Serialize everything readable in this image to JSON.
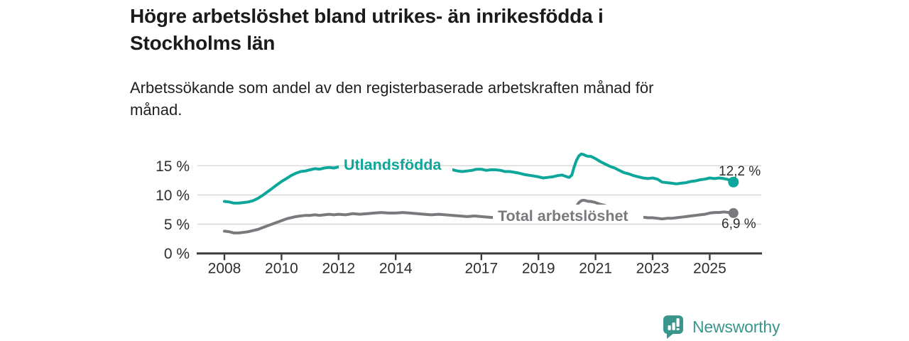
{
  "title": "Högre arbetslöshet bland utrikes- än inrikesfödda i\nStockholms län",
  "subtitle": "Arbetssökande som andel av den registerbaserade arbetskraften månad för\nmånad.",
  "branding": {
    "logo_text": "Newsworthy",
    "logo_icon": "bar-chart-speech-bubble-icon",
    "logo_color": "#3A958D"
  },
  "colors": {
    "series_utlandsfodda": "#0CA69A",
    "series_total": "#7A7A7E",
    "gridline": "#DADADA",
    "axis": "#3C3C3C",
    "tick_text": "#2E2E2E",
    "value_text": "#2D2D2D",
    "background": "#FFFFFF"
  },
  "chart_data": {
    "type": "line",
    "title": "Högre arbetslöshet bland utrikes- än inrikesfödda i Stockholms län",
    "subtitle": "Arbetssökande som andel av den registerbaserade arbetskraften månad för månad.",
    "xlabel": "",
    "ylabel": "",
    "grid": "horizontal",
    "legend_position": "inline-labels",
    "xlim": [
      2007.05,
      2026.8
    ],
    "ylim": [
      0,
      18.2
    ],
    "x_tick_years": [
      2008,
      2010,
      2012,
      2014,
      2017,
      2019,
      2021,
      2023,
      2025
    ],
    "x_tick_labels": [
      "2008",
      "2010",
      "2012",
      "2014",
      "2017",
      "2019",
      "2021",
      "2023",
      "2025"
    ],
    "y_tick_values": [
      0,
      5,
      10,
      15
    ],
    "y_tick_labels": [
      "0 %",
      "5 %",
      "10 %",
      "15 %"
    ],
    "series": [
      {
        "name": "Utlandsfödda",
        "color": "#0CA69A",
        "end_label": "12,2 %",
        "last_value": 12.2,
        "points": [
          [
            2008.0,
            8.9
          ],
          [
            2008.17,
            8.8
          ],
          [
            2008.33,
            8.6
          ],
          [
            2008.5,
            8.6
          ],
          [
            2008.67,
            8.7
          ],
          [
            2008.83,
            8.8
          ],
          [
            2009.0,
            9.0
          ],
          [
            2009.17,
            9.4
          ],
          [
            2009.33,
            9.9
          ],
          [
            2009.5,
            10.5
          ],
          [
            2009.67,
            11.1
          ],
          [
            2009.83,
            11.7
          ],
          [
            2010.0,
            12.3
          ],
          [
            2010.17,
            12.8
          ],
          [
            2010.33,
            13.3
          ],
          [
            2010.5,
            13.7
          ],
          [
            2010.67,
            14.0
          ],
          [
            2010.83,
            14.1
          ],
          [
            2011.0,
            14.3
          ],
          [
            2011.17,
            14.5
          ],
          [
            2011.33,
            14.4
          ],
          [
            2011.5,
            14.6
          ],
          [
            2011.67,
            14.7
          ],
          [
            2011.83,
            14.6
          ],
          [
            2012.0,
            14.8
          ],
          [
            2012.17,
            14.9
          ],
          [
            2012.33,
            15.0
          ],
          [
            2012.5,
            14.9
          ],
          [
            2012.75,
            15.1
          ],
          [
            2013.0,
            15.0
          ],
          [
            2013.25,
            15.2
          ],
          [
            2013.5,
            15.3
          ],
          [
            2013.75,
            15.1
          ],
          [
            2014.0,
            15.2
          ],
          [
            2014.25,
            15.0
          ],
          [
            2014.5,
            14.9
          ],
          [
            2014.75,
            14.8
          ],
          [
            2015.0,
            14.7
          ],
          [
            2015.25,
            14.6
          ],
          [
            2015.5,
            14.5
          ],
          [
            2015.75,
            14.4
          ],
          [
            2016.0,
            14.3
          ],
          [
            2016.17,
            14.1
          ],
          [
            2016.33,
            14.0
          ],
          [
            2016.5,
            14.1
          ],
          [
            2016.67,
            14.2
          ],
          [
            2016.83,
            14.4
          ],
          [
            2017.0,
            14.4
          ],
          [
            2017.17,
            14.2
          ],
          [
            2017.33,
            14.3
          ],
          [
            2017.5,
            14.3
          ],
          [
            2017.67,
            14.2
          ],
          [
            2017.83,
            14.0
          ],
          [
            2018.0,
            14.0
          ],
          [
            2018.25,
            13.8
          ],
          [
            2018.5,
            13.5
          ],
          [
            2018.75,
            13.3
          ],
          [
            2019.0,
            13.1
          ],
          [
            2019.17,
            12.9
          ],
          [
            2019.33,
            13.0
          ],
          [
            2019.5,
            13.1
          ],
          [
            2019.67,
            13.3
          ],
          [
            2019.83,
            13.4
          ],
          [
            2020.0,
            13.1
          ],
          [
            2020.08,
            13.0
          ],
          [
            2020.17,
            13.4
          ],
          [
            2020.25,
            14.8
          ],
          [
            2020.33,
            15.9
          ],
          [
            2020.42,
            16.7
          ],
          [
            2020.5,
            17.0
          ],
          [
            2020.58,
            16.9
          ],
          [
            2020.67,
            16.7
          ],
          [
            2020.75,
            16.6
          ],
          [
            2020.83,
            16.6
          ],
          [
            2020.92,
            16.4
          ],
          [
            2021.0,
            16.2
          ],
          [
            2021.17,
            15.7
          ],
          [
            2021.33,
            15.3
          ],
          [
            2021.5,
            14.9
          ],
          [
            2021.67,
            14.6
          ],
          [
            2021.83,
            14.2
          ],
          [
            2022.0,
            13.8
          ],
          [
            2022.17,
            13.6
          ],
          [
            2022.33,
            13.3
          ],
          [
            2022.5,
            13.1
          ],
          [
            2022.67,
            12.9
          ],
          [
            2022.83,
            12.8
          ],
          [
            2023.0,
            12.9
          ],
          [
            2023.17,
            12.7
          ],
          [
            2023.33,
            12.2
          ],
          [
            2023.5,
            12.1
          ],
          [
            2023.67,
            12.0
          ],
          [
            2023.83,
            11.9
          ],
          [
            2024.0,
            12.0
          ],
          [
            2024.17,
            12.1
          ],
          [
            2024.33,
            12.3
          ],
          [
            2024.5,
            12.4
          ],
          [
            2024.67,
            12.6
          ],
          [
            2024.83,
            12.7
          ],
          [
            2025.0,
            12.9
          ],
          [
            2025.17,
            12.8
          ],
          [
            2025.33,
            12.9
          ],
          [
            2025.5,
            12.8
          ],
          [
            2025.67,
            12.6
          ],
          [
            2025.83,
            12.2
          ]
        ]
      },
      {
        "name": "Total arbetslöshet",
        "color": "#7A7A7E",
        "end_label": "6,9 %",
        "last_value": 6.9,
        "points": [
          [
            2008.0,
            3.8
          ],
          [
            2008.17,
            3.7
          ],
          [
            2008.33,
            3.5
          ],
          [
            2008.5,
            3.5
          ],
          [
            2008.67,
            3.6
          ],
          [
            2008.83,
            3.7
          ],
          [
            2009.0,
            3.9
          ],
          [
            2009.17,
            4.1
          ],
          [
            2009.33,
            4.4
          ],
          [
            2009.5,
            4.7
          ],
          [
            2009.67,
            5.0
          ],
          [
            2009.83,
            5.3
          ],
          [
            2010.0,
            5.6
          ],
          [
            2010.17,
            5.9
          ],
          [
            2010.33,
            6.1
          ],
          [
            2010.5,
            6.3
          ],
          [
            2010.67,
            6.4
          ],
          [
            2010.83,
            6.5
          ],
          [
            2011.0,
            6.5
          ],
          [
            2011.17,
            6.6
          ],
          [
            2011.33,
            6.5
          ],
          [
            2011.5,
            6.6
          ],
          [
            2011.67,
            6.7
          ],
          [
            2011.83,
            6.6
          ],
          [
            2012.0,
            6.7
          ],
          [
            2012.25,
            6.6
          ],
          [
            2012.5,
            6.8
          ],
          [
            2012.75,
            6.7
          ],
          [
            2013.0,
            6.8
          ],
          [
            2013.25,
            6.9
          ],
          [
            2013.5,
            7.0
          ],
          [
            2013.75,
            6.9
          ],
          [
            2014.0,
            6.9
          ],
          [
            2014.25,
            7.0
          ],
          [
            2014.5,
            6.9
          ],
          [
            2014.75,
            6.8
          ],
          [
            2015.0,
            6.7
          ],
          [
            2015.25,
            6.6
          ],
          [
            2015.5,
            6.7
          ],
          [
            2015.75,
            6.6
          ],
          [
            2016.0,
            6.5
          ],
          [
            2016.25,
            6.4
          ],
          [
            2016.5,
            6.3
          ],
          [
            2016.75,
            6.4
          ],
          [
            2017.0,
            6.3
          ],
          [
            2017.25,
            6.2
          ],
          [
            2017.5,
            6.1
          ],
          [
            2017.75,
            6.0
          ],
          [
            2018.0,
            5.9
          ],
          [
            2018.25,
            5.8
          ],
          [
            2018.5,
            5.8
          ],
          [
            2018.75,
            5.7
          ],
          [
            2019.0,
            5.7
          ],
          [
            2019.25,
            5.8
          ],
          [
            2019.5,
            5.9
          ],
          [
            2019.75,
            6.0
          ],
          [
            2020.0,
            6.0
          ],
          [
            2020.17,
            6.3
          ],
          [
            2020.25,
            7.2
          ],
          [
            2020.33,
            8.1
          ],
          [
            2020.42,
            8.7
          ],
          [
            2020.5,
            9.0
          ],
          [
            2020.58,
            9.1
          ],
          [
            2020.67,
            9.0
          ],
          [
            2020.75,
            8.9
          ],
          [
            2020.83,
            8.9
          ],
          [
            2020.92,
            8.8
          ],
          [
            2021.0,
            8.7
          ],
          [
            2021.17,
            8.4
          ],
          [
            2021.33,
            8.2
          ],
          [
            2021.5,
            7.8
          ],
          [
            2021.67,
            7.4
          ],
          [
            2021.83,
            7.1
          ],
          [
            2022.0,
            6.8
          ],
          [
            2022.17,
            6.6
          ],
          [
            2022.33,
            6.4
          ],
          [
            2022.5,
            6.3
          ],
          [
            2022.67,
            6.2
          ],
          [
            2022.83,
            6.1
          ],
          [
            2023.0,
            6.1
          ],
          [
            2023.17,
            6.0
          ],
          [
            2023.33,
            5.9
          ],
          [
            2023.5,
            6.0
          ],
          [
            2023.67,
            6.0
          ],
          [
            2023.83,
            6.1
          ],
          [
            2024.0,
            6.2
          ],
          [
            2024.17,
            6.3
          ],
          [
            2024.33,
            6.4
          ],
          [
            2024.5,
            6.5
          ],
          [
            2024.67,
            6.6
          ],
          [
            2024.83,
            6.7
          ],
          [
            2025.0,
            6.9
          ],
          [
            2025.17,
            7.0
          ],
          [
            2025.33,
            7.0
          ],
          [
            2025.5,
            7.1
          ],
          [
            2025.67,
            7.0
          ],
          [
            2025.83,
            6.9
          ]
        ]
      }
    ]
  }
}
